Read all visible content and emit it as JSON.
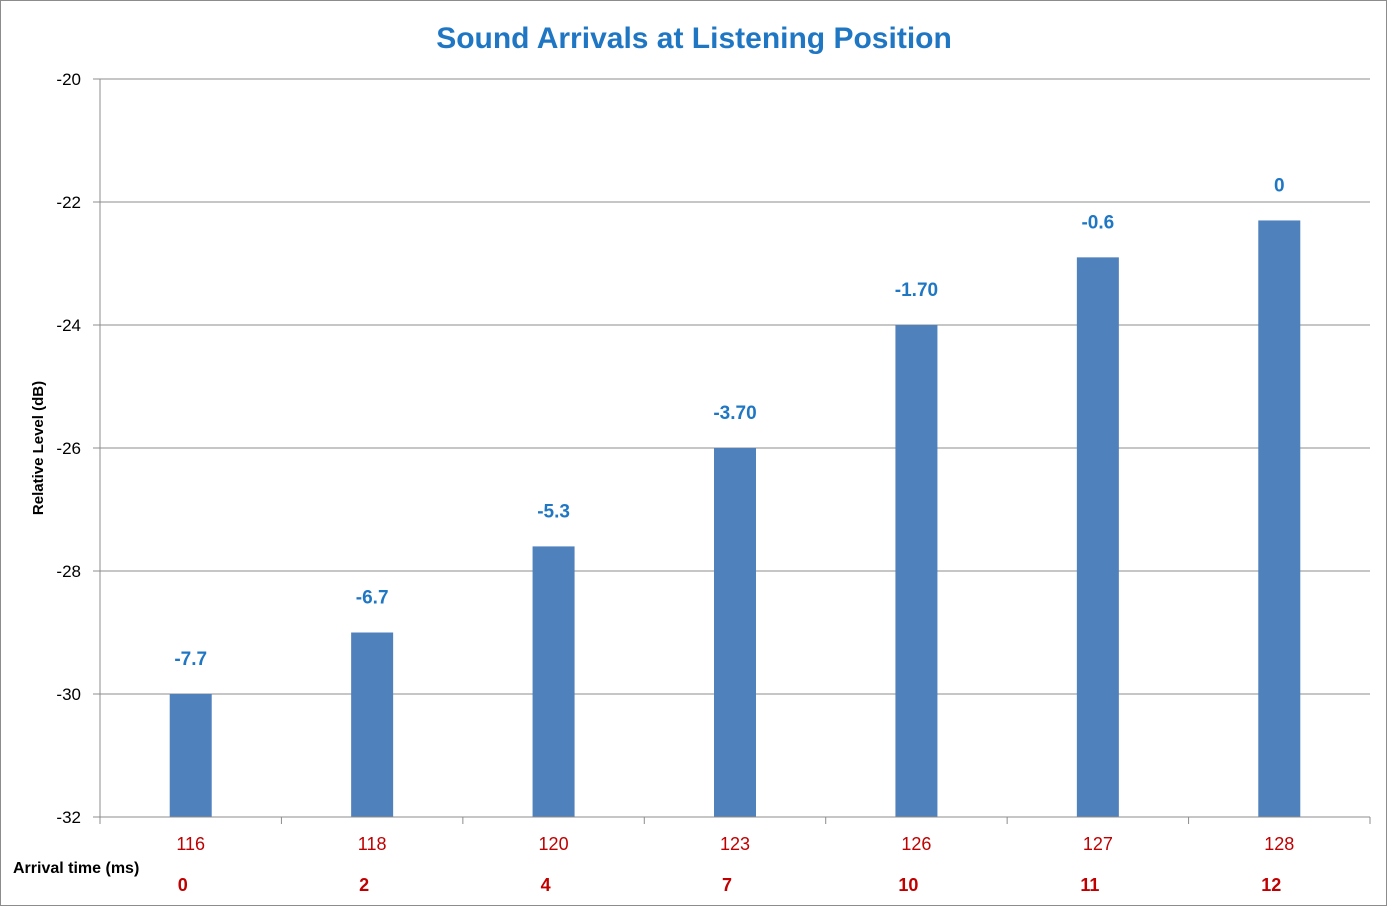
{
  "chart_data": {
    "type": "bar",
    "title": "Sound Arrivals at Listening Position",
    "ylabel": "Relative Level (dB)",
    "xlabel": "Arrival time (ms)",
    "ylim": [
      -32,
      -20
    ],
    "yticks": [
      -20,
      -22,
      -24,
      -26,
      -28,
      -30,
      -32
    ],
    "categories": [
      "116",
      "118",
      "120",
      "123",
      "126",
      "127",
      "128"
    ],
    "secondary_categories": [
      "0",
      "2",
      "4",
      "7",
      "10",
      "11",
      "12"
    ],
    "values": [
      -30,
      -29,
      -27.6,
      -26,
      -24,
      -22.9,
      -22.3
    ],
    "data_labels": [
      "-7.7",
      "-6.7",
      "-5.3",
      "-3.70",
      "-1.70",
      "-0.6",
      "0"
    ],
    "grid": true,
    "legend": "none",
    "colors": {
      "bar": "#4f81bd",
      "title": "#1f77c4",
      "data_label": "#1f77c4",
      "category_label": "#c00000",
      "grid": "#8c8c8c"
    }
  }
}
